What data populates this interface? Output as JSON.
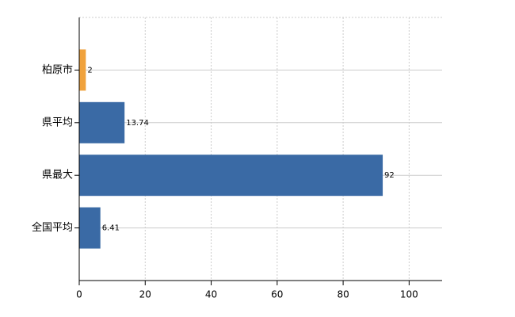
{
  "chart_data": {
    "type": "hbar",
    "categories": [
      "柏原市",
      "県平均",
      "県最大",
      "全国平均"
    ],
    "values": [
      2,
      13.74,
      92,
      6.41
    ],
    "colors": [
      "#f0a23c",
      "#3a6aa5",
      "#3a6aa5",
      "#3a6aa5"
    ],
    "xlim": [
      0,
      110
    ],
    "xticks": [
      0,
      20,
      40,
      60,
      80,
      100
    ],
    "grid": true
  }
}
